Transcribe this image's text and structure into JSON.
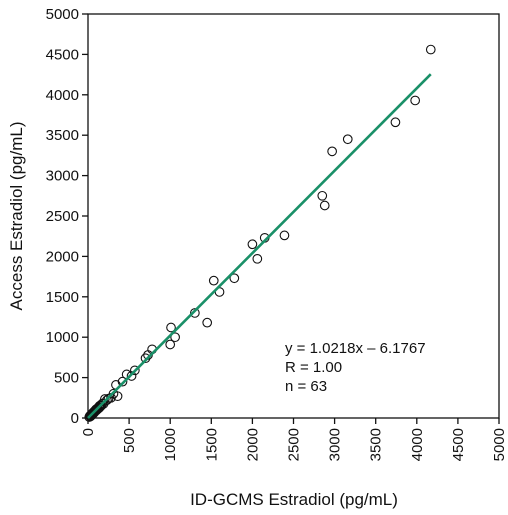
{
  "chart_data": {
    "type": "scatter",
    "xlabel": "ID-GCMS Estradiol (pg/mL)",
    "ylabel": "Access Estradiol (pg/mL)",
    "xlim": [
      0,
      5000
    ],
    "ylim": [
      0,
      5000
    ],
    "xticks": [
      "0",
      "500",
      "1000",
      "1500",
      "2000",
      "2500",
      "3000",
      "3500",
      "4000",
      "4500",
      "5000"
    ],
    "yticks": [
      "0",
      "500",
      "1000",
      "1500",
      "2000",
      "2500",
      "3000",
      "3500",
      "4000",
      "4500",
      "5000"
    ],
    "tick_values": [
      0,
      500,
      1000,
      1500,
      2000,
      2500,
      3000,
      3500,
      4000,
      4500,
      5000
    ],
    "grid": false,
    "line_color": "#1a9068",
    "marker": "open-circle",
    "regression": {
      "slope": 1.0218,
      "intercept": -6.1767,
      "x_range": [
        0,
        4170
      ]
    },
    "annotation": [
      "y = 1.0218x – 6.1767",
      "R = 1.00",
      "n = 63"
    ],
    "points": [
      [
        15,
        12
      ],
      [
        22,
        25
      ],
      [
        30,
        20
      ],
      [
        35,
        38
      ],
      [
        40,
        30
      ],
      [
        45,
        48
      ],
      [
        50,
        42
      ],
      [
        55,
        60
      ],
      [
        60,
        50
      ],
      [
        65,
        70
      ],
      [
        70,
        62
      ],
      [
        75,
        80
      ],
      [
        80,
        72
      ],
      [
        85,
        90
      ],
      [
        90,
        85
      ],
      [
        95,
        100
      ],
      [
        100,
        92
      ],
      [
        105,
        112
      ],
      [
        110,
        105
      ],
      [
        115,
        120
      ],
      [
        120,
        110
      ],
      [
        130,
        135
      ],
      [
        140,
        128
      ],
      [
        150,
        155
      ],
      [
        160,
        150
      ],
      [
        175,
        180
      ],
      [
        190,
        175
      ],
      [
        205,
        235
      ],
      [
        230,
        220
      ],
      [
        280,
        250
      ],
      [
        310,
        300
      ],
      [
        340,
        410
      ],
      [
        360,
        270
      ],
      [
        420,
        450
      ],
      [
        470,
        540
      ],
      [
        530,
        520
      ],
      [
        570,
        590
      ],
      [
        700,
        740
      ],
      [
        730,
        780
      ],
      [
        780,
        850
      ],
      [
        1000,
        910
      ],
      [
        1010,
        1120
      ],
      [
        1060,
        1000
      ],
      [
        1300,
        1300
      ],
      [
        1450,
        1180
      ],
      [
        1530,
        1700
      ],
      [
        1600,
        1560
      ],
      [
        1780,
        1730
      ],
      [
        2000,
        2150
      ],
      [
        2060,
        1970
      ],
      [
        2150,
        2230
      ],
      [
        2390,
        2260
      ],
      [
        2850,
        2750
      ],
      [
        2880,
        2630
      ],
      [
        2970,
        3300
      ],
      [
        3160,
        3450
      ],
      [
        3740,
        3660
      ],
      [
        3980,
        3930
      ],
      [
        4170,
        4560
      ],
      [
        60,
        55
      ],
      [
        95,
        105
      ],
      [
        140,
        150
      ],
      [
        250,
        240
      ]
    ]
  }
}
